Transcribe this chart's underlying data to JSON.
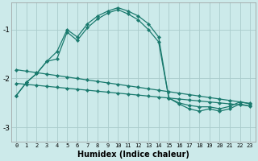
{
  "xlabel": "Humidex (Indice chaleur)",
  "bg_color": "#cceaea",
  "grid_color": "#aacccc",
  "line_color": "#1a7a6e",
  "ylim": [
    -3.3,
    -0.45
  ],
  "xlim": [
    -0.5,
    23.5
  ],
  "yticks": [
    -3,
    -2,
    -1
  ],
  "x_ticks": [
    0,
    1,
    2,
    3,
    4,
    5,
    6,
    7,
    8,
    9,
    10,
    11,
    12,
    13,
    14,
    15,
    16,
    17,
    18,
    19,
    20,
    21,
    22,
    23
  ],
  "s1_x": [
    0,
    1,
    2,
    3,
    4,
    5,
    6,
    7,
    8,
    9,
    10,
    11,
    12,
    13,
    14,
    15,
    16,
    17,
    18,
    19,
    20,
    21,
    22,
    23
  ],
  "s1_y": [
    -2.35,
    -2.08,
    -1.9,
    -1.65,
    -1.45,
    -1.0,
    -1.15,
    -0.88,
    -0.72,
    -0.62,
    -0.55,
    -0.62,
    -0.72,
    -0.88,
    -1.15,
    -2.4,
    -2.5,
    -2.55,
    -2.58,
    -2.58,
    -2.62,
    -2.57,
    -2.48,
    -2.52
  ],
  "s2_x": [
    0,
    1,
    2,
    3,
    4,
    5,
    6,
    7,
    8,
    9,
    10,
    11,
    12,
    13,
    14,
    15,
    16,
    17,
    18,
    19,
    20,
    21,
    22,
    23
  ],
  "s2_y": [
    -2.35,
    -2.08,
    -1.9,
    -1.65,
    -1.6,
    -1.05,
    -1.22,
    -0.96,
    -0.78,
    -0.66,
    -0.59,
    -0.68,
    -0.8,
    -1.0,
    -1.25,
    -2.4,
    -2.52,
    -2.62,
    -2.67,
    -2.62,
    -2.67,
    -2.62,
    -2.52,
    -2.57
  ],
  "s3_x": [
    0,
    1,
    2,
    3,
    4,
    5,
    6,
    7,
    8,
    9,
    10,
    11,
    12,
    13,
    14,
    15,
    16,
    17,
    18,
    19,
    20,
    21,
    22,
    23
  ],
  "s3_y": [
    -1.82,
    -1.85,
    -1.88,
    -1.91,
    -1.94,
    -1.97,
    -2.0,
    -2.03,
    -2.06,
    -2.09,
    -2.12,
    -2.15,
    -2.18,
    -2.21,
    -2.24,
    -2.27,
    -2.3,
    -2.33,
    -2.36,
    -2.39,
    -2.42,
    -2.45,
    -2.48,
    -2.51
  ],
  "s4_x": [
    0,
    1,
    2,
    3,
    4,
    5,
    6,
    7,
    8,
    9,
    10,
    11,
    12,
    13,
    14,
    15,
    16,
    17,
    18,
    19,
    20,
    21,
    22,
    23
  ],
  "s4_y": [
    -2.1,
    -2.12,
    -2.14,
    -2.16,
    -2.18,
    -2.2,
    -2.22,
    -2.24,
    -2.26,
    -2.28,
    -2.3,
    -2.32,
    -2.34,
    -2.36,
    -2.38,
    -2.4,
    -2.42,
    -2.44,
    -2.46,
    -2.48,
    -2.5,
    -2.52,
    -2.54,
    -2.56
  ]
}
